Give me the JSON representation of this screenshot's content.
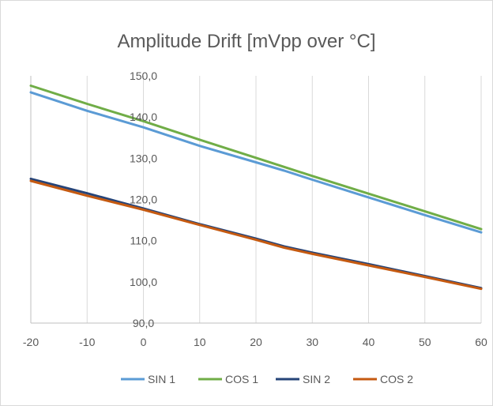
{
  "chart_data": {
    "type": "line",
    "title": "Amplitude Drift [mVpp over °C]",
    "xlabel": "",
    "ylabel": "",
    "x": [
      -20,
      -10,
      0,
      10,
      20,
      25,
      30,
      40,
      50,
      60
    ],
    "x_ticks": [
      "-20",
      "-10",
      "0",
      "10",
      "20",
      "30",
      "40",
      "50",
      "60"
    ],
    "y_ticks": [
      "90,0",
      "100,0",
      "110,0",
      "120,0",
      "130,0",
      "140,0",
      "150,0"
    ],
    "xlim": [
      -20,
      60
    ],
    "ylim": [
      90,
      150
    ],
    "grid": "vertical",
    "legend_position": "bottom",
    "series": [
      {
        "name": "SIN 1",
        "color": "#5b9bd5",
        "values": [
          146.0,
          141.5,
          137.5,
          133.0,
          129.0,
          127.0,
          124.8,
          120.5,
          116.2,
          112.0
        ]
      },
      {
        "name": "COS 1",
        "color": "#70ad47",
        "values": [
          147.6,
          143.2,
          139.0,
          134.5,
          130.1,
          127.9,
          125.7,
          121.4,
          117.1,
          112.8
        ]
      },
      {
        "name": "SIN 2",
        "color": "#264478",
        "values": [
          125.0,
          121.5,
          117.8,
          114.0,
          110.5,
          108.6,
          107.1,
          104.3,
          101.4,
          98.5
        ]
      },
      {
        "name": "COS 2",
        "color": "#c55a11",
        "values": [
          124.5,
          120.9,
          117.5,
          113.8,
          110.2,
          108.3,
          106.8,
          104.0,
          101.2,
          98.3
        ]
      }
    ]
  }
}
